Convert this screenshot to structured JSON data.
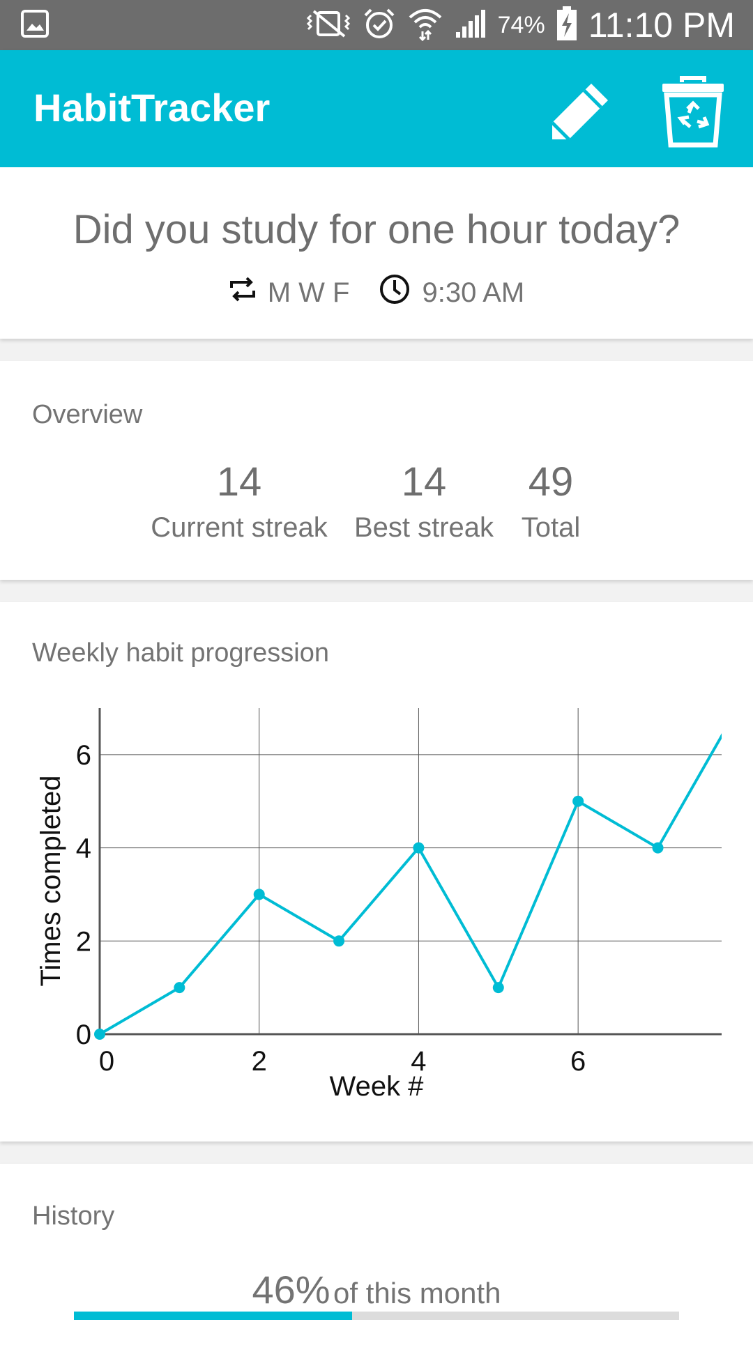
{
  "status_bar": {
    "battery_pct": "74%",
    "time": "11:10 PM",
    "icons": [
      "gallery-notification-icon",
      "vibrate-mute-icon",
      "alarm-icon",
      "wifi-icon",
      "signal-icon",
      "battery-charging-icon"
    ]
  },
  "app_bar": {
    "title": "HabitTracker",
    "accent_color": "#00bcd4",
    "actions": [
      "pencil-icon",
      "recycle-bin-icon"
    ]
  },
  "habit": {
    "question": "Did you study for one hour today?",
    "repeat_days": "M W F",
    "reminder_time": "9:30 AM"
  },
  "overview": {
    "title": "Overview",
    "stats": [
      {
        "value": "14",
        "label": "Current streak"
      },
      {
        "value": "14",
        "label": "Best streak"
      },
      {
        "value": "49",
        "label": "Total"
      }
    ]
  },
  "progression": {
    "title": "Weekly habit progression"
  },
  "chart_data": {
    "type": "line",
    "x": [
      0,
      1,
      2,
      3,
      4,
      5,
      6,
      7,
      8
    ],
    "values": [
      0,
      1,
      3,
      2,
      4,
      1,
      5,
      4,
      7
    ],
    "xlabel": "Week #",
    "ylabel": "Times completed",
    "xticks": [
      "0",
      "2",
      "4",
      "6"
    ],
    "yticks": [
      "0",
      "2",
      "4",
      "6"
    ],
    "xlim": [
      0,
      7.8
    ],
    "ylim": [
      0,
      7
    ],
    "grid": true,
    "line_color": "#00bcd4"
  },
  "history": {
    "title": "History",
    "percent": "46%",
    "suffix": "of this month",
    "fraction": 0.46
  }
}
